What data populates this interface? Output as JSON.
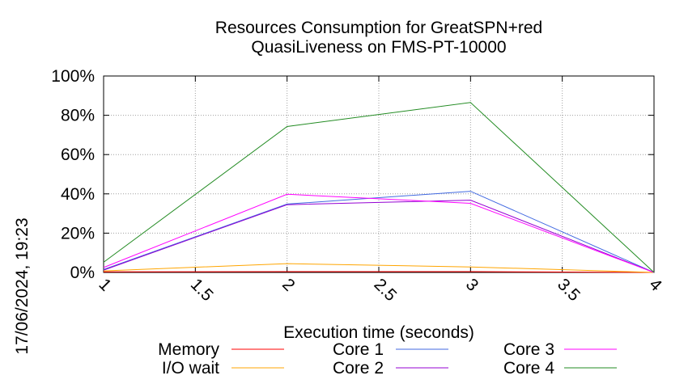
{
  "chart_data": {
    "type": "line",
    "title_line1": "Resources Consumption for GreatSPN+red",
    "title_line2": "QuasiLiveness on FMS-PT-10000",
    "xlabel": "Execution time (seconds)",
    "ylabel": "",
    "side_label": "17/06/2024, 19:23",
    "x": [
      1,
      2,
      3,
      4
    ],
    "xlim": [
      1,
      4
    ],
    "ylim": [
      0,
      100
    ],
    "x_ticks": [
      "1",
      "1.5",
      "2",
      "2.5",
      "3",
      "3.5",
      "4"
    ],
    "x_tick_values": [
      1,
      1.5,
      2,
      2.5,
      3,
      3.5,
      4
    ],
    "y_ticks": [
      "0%",
      "20%",
      "40%",
      "60%",
      "80%",
      "100%"
    ],
    "y_tick_values": [
      0,
      20,
      40,
      60,
      80,
      100
    ],
    "grid": true,
    "legend_placement": "bottom",
    "series": [
      {
        "name": "Memory",
        "color": "#ff0000",
        "values": [
          0.3,
          0.4,
          0.4,
          0
        ]
      },
      {
        "name": "I/O wait",
        "color": "#ffa500",
        "values": [
          0.8,
          4.5,
          2.8,
          0
        ]
      },
      {
        "name": "Core 1",
        "color": "#4169e1",
        "values": [
          1.5,
          34.8,
          41.3,
          0
        ]
      },
      {
        "name": "Core 2",
        "color": "#9400d3",
        "values": [
          1.2,
          34.5,
          36.8,
          0
        ]
      },
      {
        "name": "Core 3",
        "color": "#ff00ff",
        "values": [
          2.5,
          39.8,
          35.2,
          0
        ]
      },
      {
        "name": "Core 4",
        "color": "#228b22",
        "values": [
          5.2,
          74.3,
          86.5,
          0
        ]
      }
    ]
  }
}
